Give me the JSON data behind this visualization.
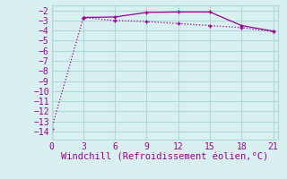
{
  "line1_x": [
    3,
    6,
    9,
    12,
    15,
    18,
    21
  ],
  "line1_y": [
    -2.7,
    -2.65,
    -2.2,
    -2.15,
    -2.15,
    -3.5,
    -4.05
  ],
  "line2_x": [
    0,
    3,
    6,
    9,
    12,
    15,
    18,
    21
  ],
  "line2_y": [
    -13.7,
    -2.7,
    -3.0,
    -3.1,
    -3.3,
    -3.5,
    -3.7,
    -4.1
  ],
  "line_color": "#990099",
  "bg_color": "#d8f0f0",
  "grid_color": "#b0d8d8",
  "xlabel": "Windchill (Refroidissement éolien,°C)",
  "xlabel_color": "#990099",
  "xticks": [
    0,
    3,
    6,
    9,
    12,
    15,
    18,
    21
  ],
  "yticks": [
    -2,
    -3,
    -4,
    -5,
    -6,
    -7,
    -8,
    -9,
    -10,
    -11,
    -12,
    -13,
    -14
  ],
  "ylim": [
    -14.8,
    -1.5
  ],
  "xlim": [
    0,
    21.5
  ],
  "tick_fontsize": 7,
  "xlabel_fontsize": 7.5
}
